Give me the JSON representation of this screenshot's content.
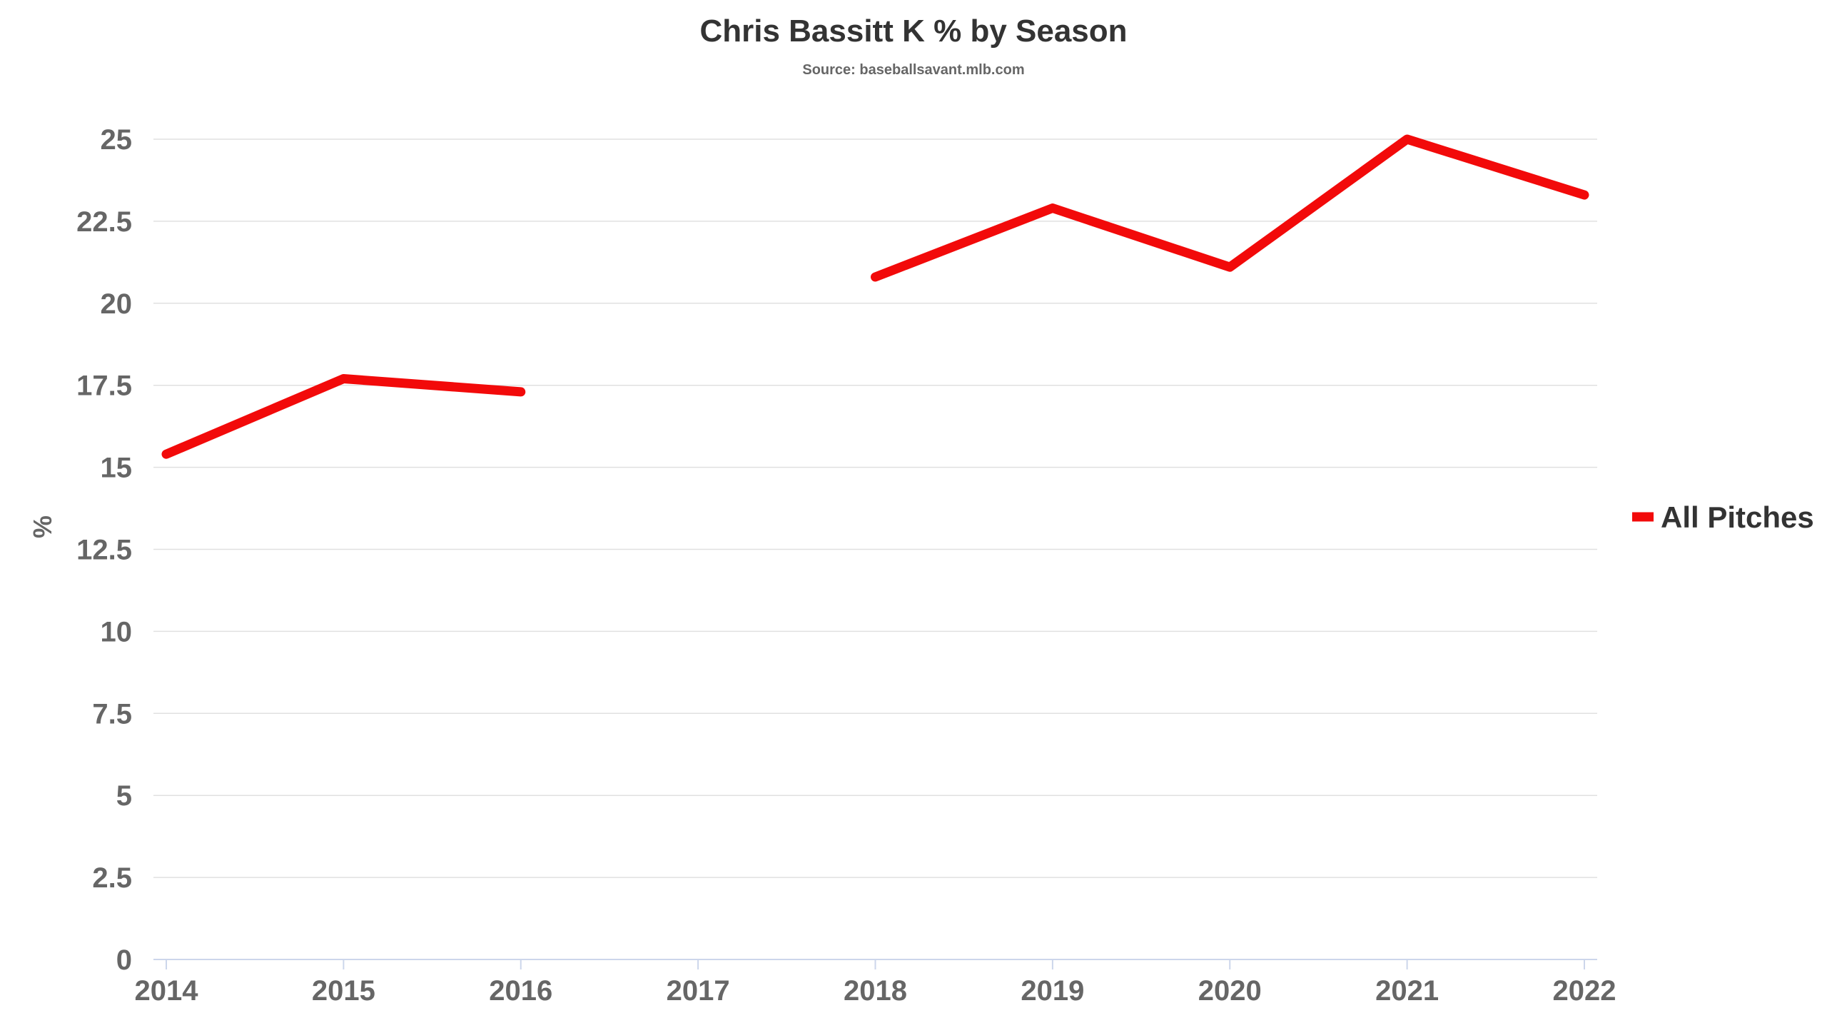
{
  "chart_data": {
    "type": "line",
    "title": "Chris Bassitt K % by Season",
    "subtitle": "Source: baseballsavant.mlb.com",
    "xlabel": "",
    "ylabel": "%",
    "categories": [
      "2014",
      "2015",
      "2016",
      "2017",
      "2018",
      "2019",
      "2020",
      "2021",
      "2022"
    ],
    "ylim": [
      0,
      25
    ],
    "yticks": [
      0,
      2.5,
      5,
      7.5,
      10,
      12.5,
      15,
      17.5,
      20,
      22.5,
      25
    ],
    "ytick_labels": [
      "0",
      "2.5",
      "5",
      "7.5",
      "10",
      "12.5",
      "15",
      "17.5",
      "20",
      "22.5",
      "25"
    ],
    "grid": true,
    "legend_position": "right",
    "series": [
      {
        "name": "All Pitches",
        "color": "#f20a0a",
        "values": [
          15.4,
          17.7,
          17.3,
          null,
          20.8,
          22.9,
          21.1,
          25.0,
          23.3
        ]
      }
    ]
  }
}
